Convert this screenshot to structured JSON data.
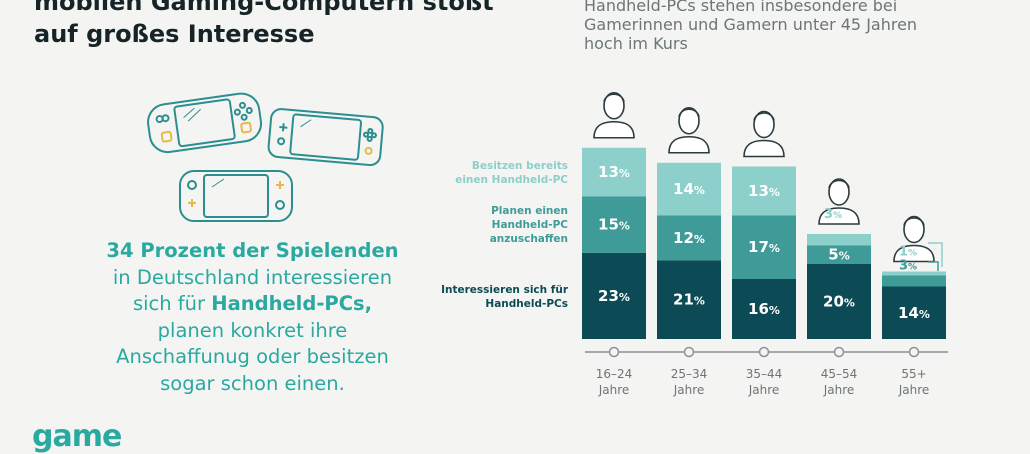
{
  "header": {
    "title_line1": "mobilen Gaming-Computern stößt",
    "title_line2": "auf großes Interesse",
    "subtitle_line1": "Handheld-PCs stehen insbesondere bei",
    "subtitle_line2": "Gamerinnen und Gamern unter 45 Jahren",
    "subtitle_line3": "hoch im Kurs"
  },
  "description": {
    "bold_lead": "34 Prozent der Spielenden",
    "line2": "in Deutschland interessieren",
    "line3_pre": "sich für ",
    "line3_bold": "Handheld-PCs,",
    "line4": "planen konkret ihre",
    "line5": "Anschaffunug oder besitzen",
    "line6": "sogar schon einen."
  },
  "logo": {
    "text": "game"
  },
  "legend": {
    "own": "Besitzen bereits einen Handheld-PC",
    "plan": "Planen einen Handheld-PC anzuschaffen",
    "interest": "Interessieren sich für Handheld-PCs"
  },
  "colors": {
    "own": "#8dcfcb",
    "plan": "#3e9b98",
    "interest": "#0c4b55",
    "accent": "#2aa9a1"
  },
  "chart_data": {
    "type": "bar",
    "stacked": true,
    "unit": "%",
    "categories": [
      "16–24 Jahre",
      "25–34 Jahre",
      "35–44 Jahre",
      "45–54 Jahre",
      "55+ Jahre"
    ],
    "series": [
      {
        "name": "Interessieren sich für Handheld-PCs",
        "values": [
          23,
          21,
          16,
          20,
          14
        ]
      },
      {
        "name": "Planen einen Handheld-PC anzuschaffen",
        "values": [
          15,
          12,
          17,
          5,
          3
        ]
      },
      {
        "name": "Besitzen bereits einen Handheld-PC",
        "values": [
          13,
          14,
          13,
          3,
          1
        ]
      }
    ]
  }
}
